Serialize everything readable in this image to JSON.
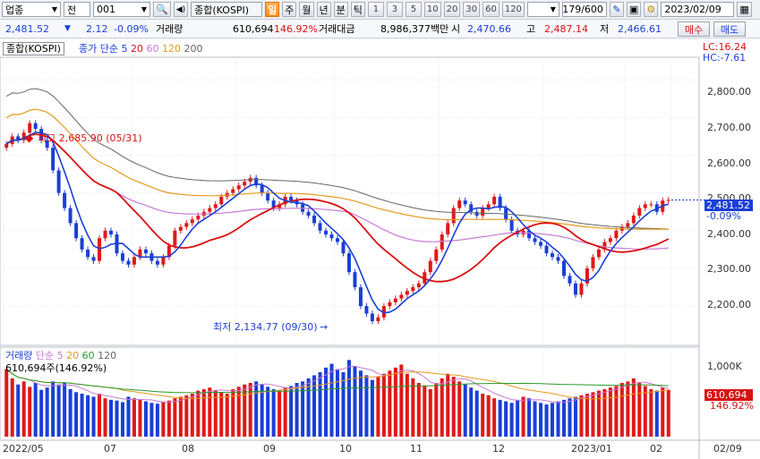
{
  "toolbar": {
    "market_select": "업종",
    "type_label": "전",
    "code_input": "001",
    "name_field": "종합(KOSPI)",
    "periods": [
      {
        "label": "일",
        "active": true
      },
      {
        "label": "주",
        "active": false
      },
      {
        "label": "월",
        "active": false
      },
      {
        "label": "년",
        "active": false
      },
      {
        "label": "분",
        "active": false
      },
      {
        "label": "틱",
        "active": false
      }
    ],
    "intervals": [
      "1",
      "3",
      "5",
      "10",
      "20",
      "30",
      "60",
      "120"
    ],
    "count": "179/600",
    "date": "2023/02/09"
  },
  "info": {
    "price": "2,481.52",
    "change": "2.12",
    "change_pct": "-0.09%",
    "volume_label": "거래량",
    "volume": "610,694",
    "volume_pct": "146.92%",
    "amount_label": "거래대금",
    "amount": "8,986,377백만",
    "open_label": "시",
    "open": "2,470.66",
    "high_label": "고",
    "high": "2,487.14",
    "low_label": "저",
    "low": "2,466.61",
    "buy_label": "매수",
    "sell_label": "매도"
  },
  "price_legend": {
    "name": "종합(KOSPI)",
    "ma_title": "종가 단순",
    "ma": [
      {
        "label": "5",
        "color": "#1a3fd6"
      },
      {
        "label": "20",
        "color": "#d81010"
      },
      {
        "label": "60",
        "color": "#c77ad6"
      },
      {
        "label": "120",
        "color": "#e39a1e"
      },
      {
        "label": "200",
        "color": "#666666"
      }
    ],
    "lc": "LC:16.24",
    "hc": "HC:-7.61"
  },
  "annotations": {
    "high": "최고 2,685.90 (05/31)",
    "low": "최저 2,134.77 (09/30)"
  },
  "price_axis": [
    "2,800.00",
    "2,700.00",
    "2,600.00",
    "2,500.00",
    "2,400.00",
    "2,300.00",
    "2,200.00"
  ],
  "current_tag": {
    "price": "2,481.52",
    "pct": "-0.09%"
  },
  "volume_legend": {
    "name": "거래량",
    "ma_title": "단순",
    "ma": [
      {
        "label": "5",
        "color": "#c77ad6"
      },
      {
        "label": "20",
        "color": "#e39a1e"
      },
      {
        "label": "60",
        "color": "#2a9a2a"
      },
      {
        "label": "120",
        "color": "#666666"
      }
    ],
    "summary": "610,694주(146.92%)"
  },
  "volume_axis": {
    "top": "1,000K",
    "current": "610,694",
    "pct": "146.92%"
  },
  "date_axis": [
    {
      "label": "2022/05"
    },
    {
      "label": "07"
    },
    {
      "label": "08"
    },
    {
      "label": "09"
    },
    {
      "label": "10"
    },
    {
      "label": "11"
    },
    {
      "label": "12"
    },
    {
      "label": "2023/01"
    },
    {
      "label": "02"
    },
    {
      "label": "02/09"
    }
  ],
  "chart_data": {
    "type": "candlestick",
    "title": "종합(KOSPI)",
    "price_range": [
      2110,
      2860
    ],
    "volume_range": [
      0,
      1050000
    ],
    "months": [
      "2022/05",
      "07",
      "08",
      "09",
      "10",
      "11",
      "12",
      "2023/01",
      "02"
    ],
    "close": [
      2630,
      2650,
      2640,
      2660,
      2685,
      2670,
      2640,
      2620,
      2560,
      2500,
      2460,
      2420,
      2380,
      2350,
      2330,
      2320,
      2380,
      2400,
      2390,
      2340,
      2320,
      2310,
      2330,
      2350,
      2340,
      2320,
      2310,
      2330,
      2360,
      2400,
      2410,
      2420,
      2430,
      2440,
      2450,
      2460,
      2470,
      2490,
      2500,
      2510,
      2520,
      2530,
      2540,
      2520,
      2500,
      2480,
      2460,
      2470,
      2490,
      2480,
      2470,
      2450,
      2440,
      2420,
      2400,
      2390,
      2380,
      2370,
      2340,
      2290,
      2250,
      2200,
      2180,
      2160,
      2170,
      2200,
      2210,
      2220,
      2230,
      2240,
      2250,
      2260,
      2290,
      2320,
      2350,
      2390,
      2420,
      2460,
      2480,
      2470,
      2450,
      2440,
      2460,
      2470,
      2490,
      2460,
      2430,
      2400,
      2390,
      2400,
      2380,
      2370,
      2360,
      2340,
      2330,
      2320,
      2280,
      2260,
      2230,
      2260,
      2300,
      2330,
      2350,
      2370,
      2380,
      2400,
      2410,
      2420,
      2440,
      2460,
      2470,
      2470,
      2450,
      2480,
      2481.52
    ],
    "volume": [
      880000,
      760000,
      680000,
      720000,
      650000,
      700000,
      610000,
      640000,
      720000,
      680000,
      700000,
      620000,
      580000,
      560000,
      540000,
      520000,
      560000,
      500000,
      480000,
      470000,
      450000,
      520000,
      500000,
      480000,
      460000,
      440000,
      430000,
      450000,
      470000,
      500000,
      520000,
      540000,
      560000,
      600000,
      620000,
      640000,
      600000,
      580000,
      560000,
      620000,
      650000,
      680000,
      700000,
      720000,
      680000,
      650000,
      620000,
      600000,
      640000,
      660000,
      700000,
      720000,
      760000,
      800000,
      840000,
      900000,
      950000,
      880000,
      840000,
      1000000,
      920000,
      860000,
      800000,
      740000,
      780000,
      820000,
      860000,
      900000,
      940000,
      820000,
      760000,
      700000,
      660000,
      620000,
      700000,
      760000,
      820000,
      780000,
      720000,
      680000,
      640000,
      600000,
      560000,
      540000,
      500000,
      480000,
      460000,
      440000,
      480000,
      520000,
      500000,
      460000,
      440000,
      420000,
      440000,
      460000,
      480000,
      500000,
      520000,
      540000,
      560000,
      580000,
      600000,
      620000,
      640000,
      660000,
      700000,
      720000,
      760000,
      700000,
      660000,
      620000,
      600000,
      640000,
      610694
    ]
  }
}
